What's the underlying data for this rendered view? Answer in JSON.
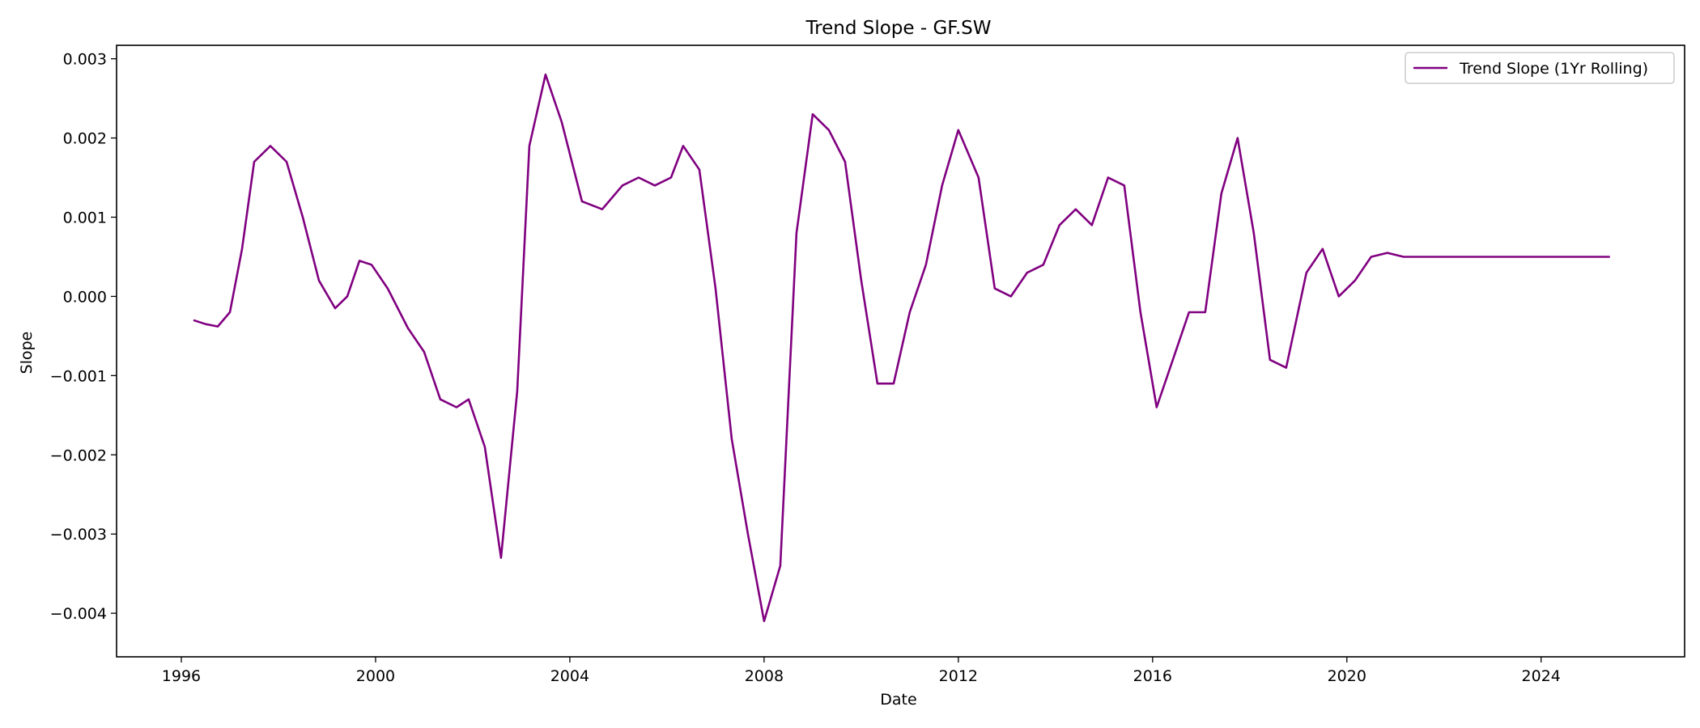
{
  "chart_data": {
    "type": "line",
    "title": "Trend Slope - GF.SW",
    "xlabel": "Date",
    "ylabel": "Slope",
    "xlim": [
      "1994-09-01",
      "2026-12-15"
    ],
    "ylim": [
      -0.00455,
      0.00317
    ],
    "x_ticks": [
      "1996",
      "2000",
      "2004",
      "2008",
      "2012",
      "2016",
      "2020",
      "2024"
    ],
    "y_ticks": [
      "0.003",
      "0.002",
      "0.001",
      "0.000",
      "−0.001",
      "−0.002",
      "−0.003",
      "−0.004"
    ],
    "grid": false,
    "legend_position": "upper right",
    "series": [
      {
        "name": "Trend Slope (1Yr Rolling)",
        "color": "#800080",
        "x": [
          "1996-04",
          "1996-07",
          "1996-10",
          "1997-01",
          "1997-04",
          "1997-07",
          "1997-11",
          "1998-03",
          "1998-07",
          "1998-11",
          "1999-03",
          "1999-06",
          "1999-09",
          "1999-12",
          "2000-04",
          "2000-09",
          "2001-01",
          "2001-05",
          "2001-09",
          "2001-12",
          "2002-04",
          "2002-08",
          "2002-12",
          "2003-03",
          "2003-07",
          "2003-11",
          "2004-04",
          "2004-09",
          "2005-02",
          "2005-06",
          "2005-10",
          "2006-02",
          "2006-05",
          "2006-09",
          "2007-01",
          "2007-05",
          "2007-09",
          "2008-01",
          "2008-05",
          "2008-09",
          "2009-01",
          "2009-05",
          "2009-09",
          "2010-01",
          "2010-05",
          "2010-09",
          "2011-01",
          "2011-05",
          "2011-09",
          "2012-01",
          "2012-06",
          "2012-10",
          "2013-02",
          "2013-06",
          "2013-10",
          "2014-02",
          "2014-06",
          "2014-10",
          "2015-02",
          "2015-06",
          "2015-10",
          "2016-02",
          "2016-06",
          "2016-10",
          "2017-02",
          "2017-06",
          "2017-10",
          "2018-02",
          "2018-06",
          "2018-10",
          "2019-03",
          "2019-07",
          "2019-11",
          "2020-03",
          "2020-07",
          "2020-11",
          "2021-03",
          "2021-06",
          "2021-10",
          "2022-02",
          "2022-06",
          "2022-10",
          "2023-02",
          "2023-06",
          "2023-10",
          "2024-02",
          "2024-06",
          "2024-10",
          "2025-02",
          "2025-06"
        ],
        "values": [
          -0.0003,
          -0.00035,
          -0.00038,
          -0.0002,
          0.0006,
          0.0017,
          0.0019,
          0.0017,
          0.001,
          0.0002,
          -0.00015,
          0.0,
          0.00045,
          0.0004,
          0.0001,
          -0.0004,
          -0.0007,
          -0.0013,
          -0.0014,
          -0.0013,
          -0.0019,
          -0.0033,
          -0.0012,
          0.0019,
          0.0028,
          0.0022,
          0.0012,
          0.0011,
          0.0014,
          0.0015,
          0.0014,
          0.0015,
          0.0019,
          0.0016,
          0.0001,
          -0.0018,
          -0.003,
          -0.0041,
          -0.0034,
          0.0008,
          0.0023,
          0.0021,
          0.0017,
          0.0002,
          -0.0011,
          -0.0011,
          -0.0002,
          0.0004,
          0.0014,
          0.0021,
          0.0015,
          0.0001,
          0.0,
          0.0003,
          0.0004,
          0.0009,
          0.0011,
          0.0009,
          0.0015,
          0.0014,
          -0.0002,
          -0.0014,
          -0.0008,
          -0.0002,
          -0.0002,
          0.0013,
          0.002,
          0.0008,
          -0.0008,
          -0.0009,
          0.0003,
          0.0006,
          0.0,
          0.0002,
          0.0005,
          0.00055,
          0.0005,
          0.0005,
          0.0005,
          0.0005,
          0.0005,
          0.0005,
          0.0005,
          0.0005,
          0.0005,
          0.0005,
          0.0005,
          0.0005,
          0.0005,
          0.0005
        ]
      }
    ]
  }
}
